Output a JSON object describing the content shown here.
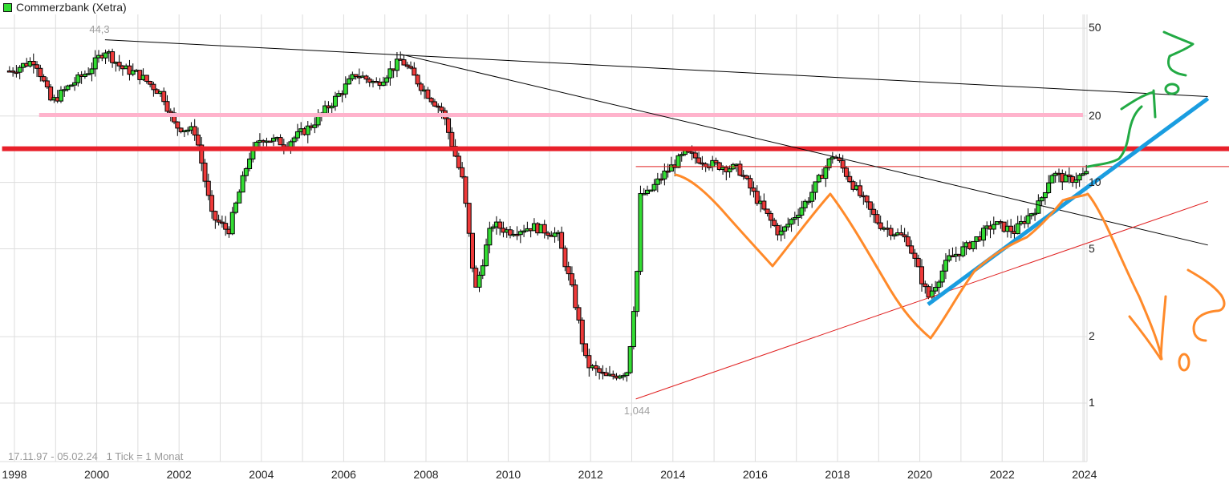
{
  "header": {
    "title": "Commerzbank (Xetra)",
    "legend_color": "#33dd33"
  },
  "footer": {
    "range": "17.11.97 - 05.02.24",
    "tick_info": "1 Tick = 1 Monat"
  },
  "annotations": {
    "high_label": "44,3",
    "low_label": "1,044"
  },
  "colors": {
    "up": "#33dd33",
    "down": "#ee3a3a",
    "grid": "#dddddd",
    "support_pink": "#ffb3cc",
    "resistance_red": "#e8202a",
    "thin_red": "#e02020",
    "trend_black": "#000000",
    "trend_blue": "#1a9de0",
    "drawing_orange": "#ff8a2a",
    "drawing_green": "#22aa44"
  },
  "chart_data": {
    "type": "candlestick",
    "title": "Commerzbank (Xetra)",
    "xlabel": "",
    "ylabel": "",
    "scale": "log",
    "ylim": [
      0.75,
      60
    ],
    "y_ticks": [
      50,
      20,
      10,
      5,
      2,
      1
    ],
    "x_ticks": [
      "1998",
      "2000",
      "2002",
      "2004",
      "2006",
      "2008",
      "2010",
      "2012",
      "2014",
      "2016",
      "2018",
      "2020",
      "2022",
      "2024"
    ],
    "date_range": "17.11.97 - 05.02.24",
    "interval": "1 month",
    "all_time_high": 44.3,
    "all_time_low": 1.044,
    "grid": true,
    "legend_position": "top-left",
    "series_monthly_close": [
      {
        "year": 1997.9,
        "value": 32
      },
      {
        "year": 1998.5,
        "value": 36
      },
      {
        "year": 1998.9,
        "value": 23
      },
      {
        "year": 1999.3,
        "value": 27
      },
      {
        "year": 1999.8,
        "value": 32
      },
      {
        "year": 2000.2,
        "value": 40
      },
      {
        "year": 2000.6,
        "value": 33
      },
      {
        "year": 2001.0,
        "value": 31
      },
      {
        "year": 2001.6,
        "value": 25
      },
      {
        "year": 2001.9,
        "value": 18
      },
      {
        "year": 2002.4,
        "value": 17
      },
      {
        "year": 2002.8,
        "value": 7
      },
      {
        "year": 2003.2,
        "value": 6
      },
      {
        "year": 2003.7,
        "value": 13
      },
      {
        "year": 2004.0,
        "value": 16
      },
      {
        "year": 2004.6,
        "value": 15
      },
      {
        "year": 2005.2,
        "value": 18
      },
      {
        "year": 2005.8,
        "value": 24
      },
      {
        "year": 2006.3,
        "value": 31
      },
      {
        "year": 2006.8,
        "value": 28
      },
      {
        "year": 2007.4,
        "value": 36
      },
      {
        "year": 2007.9,
        "value": 27
      },
      {
        "year": 2008.4,
        "value": 21
      },
      {
        "year": 2008.9,
        "value": 10
      },
      {
        "year": 2009.2,
        "value": 3.2
      },
      {
        "year": 2009.6,
        "value": 6.5
      },
      {
        "year": 2010.0,
        "value": 6.0
      },
      {
        "year": 2010.6,
        "value": 6.3
      },
      {
        "year": 2011.2,
        "value": 5.8
      },
      {
        "year": 2011.6,
        "value": 3.0
      },
      {
        "year": 2011.9,
        "value": 1.5
      },
      {
        "year": 2012.4,
        "value": 1.3
      },
      {
        "year": 2012.9,
        "value": 1.4
      },
      {
        "year": 2013.3,
        "value": 8.5
      },
      {
        "year": 2013.8,
        "value": 11
      },
      {
        "year": 2014.3,
        "value": 13.5
      },
      {
        "year": 2015.0,
        "value": 12
      },
      {
        "year": 2015.6,
        "value": 11.5
      },
      {
        "year": 2016.2,
        "value": 7.5
      },
      {
        "year": 2016.6,
        "value": 5.8
      },
      {
        "year": 2017.3,
        "value": 8.5
      },
      {
        "year": 2017.9,
        "value": 13.5
      },
      {
        "year": 2018.5,
        "value": 9
      },
      {
        "year": 2019.0,
        "value": 6.5
      },
      {
        "year": 2019.7,
        "value": 5.5
      },
      {
        "year": 2020.2,
        "value": 3.0
      },
      {
        "year": 2020.7,
        "value": 4.5
      },
      {
        "year": 2021.2,
        "value": 5.2
      },
      {
        "year": 2021.8,
        "value": 6.5
      },
      {
        "year": 2022.3,
        "value": 6.0
      },
      {
        "year": 2022.9,
        "value": 8.0
      },
      {
        "year": 2023.2,
        "value": 11
      },
      {
        "year": 2023.6,
        "value": 10.2
      },
      {
        "year": 2024.1,
        "value": 11
      }
    ],
    "horizontal_lines": [
      {
        "name": "pink-support",
        "value": 20.2,
        "from_year": 1998.6,
        "color": "#ffb3cc"
      },
      {
        "name": "thick-red-resistance",
        "value": 14.2,
        "from_year": 1997.7,
        "color": "#e8202a"
      },
      {
        "name": "thin-red-line",
        "value": 11.8,
        "from_year": 2013.1,
        "color": "#e02020"
      }
    ],
    "trend_lines": [
      {
        "name": "long-downtrend",
        "from": [
          2000.2,
          44.3
        ],
        "to": [
          2027.0,
          24.5
        ],
        "color": "#000000"
      },
      {
        "name": "downtrend-2007",
        "from": [
          2007.4,
          38
        ],
        "to": [
          2027.0,
          5.2
        ],
        "color": "#000000"
      },
      {
        "name": "uptrend-from-low",
        "from": [
          2013.1,
          1.044
        ],
        "to": [
          2027.0,
          8.2
        ],
        "color": "#e02020"
      },
      {
        "name": "blue-uptrend",
        "from": [
          2020.2,
          2.8
        ],
        "to": [
          2027.0,
          24
        ],
        "color": "#1a9de0"
      }
    ]
  }
}
